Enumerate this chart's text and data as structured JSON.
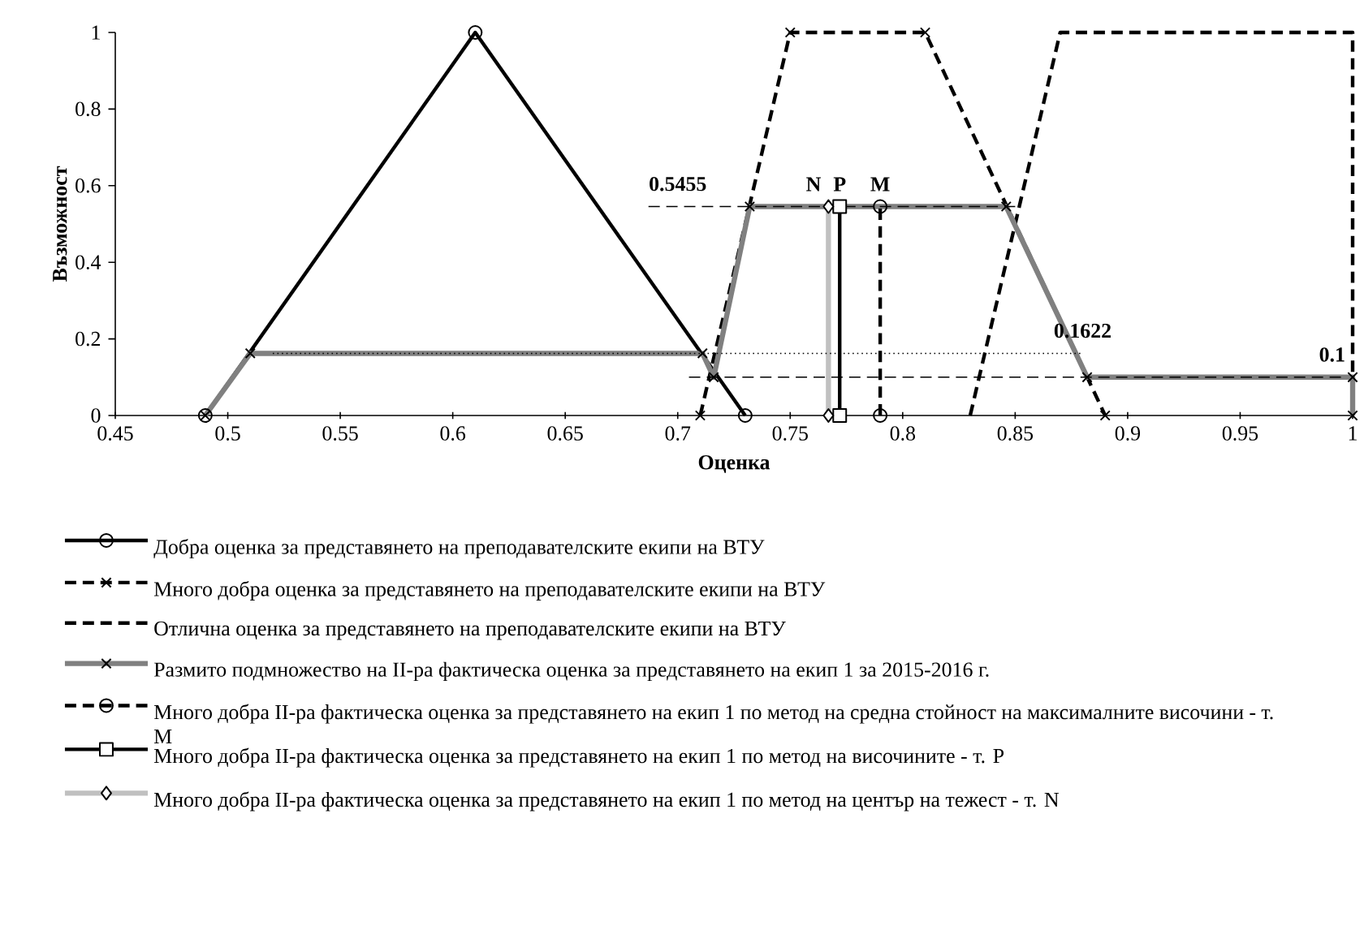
{
  "chart_data": {
    "type": "line",
    "xlabel": "Оценка",
    "ylabel": "Възможност",
    "xlim": [
      0.45,
      1
    ],
    "xticks": [
      0.45,
      0.5,
      0.55,
      0.6,
      0.65,
      0.7,
      0.75,
      0.8,
      0.85,
      0.9,
      0.95,
      1
    ],
    "ylim": [
      0,
      1
    ],
    "yticks": [
      0,
      0.2,
      0.4,
      0.6,
      0.8,
      1
    ],
    "grid": false,
    "legend": "bottom",
    "series": [
      {
        "name": "Добра оценка за представянето на преподавателските екипи на ВТУ",
        "color": "#000000",
        "marker": "circle",
        "line_style": "solid",
        "x": [
          0.49,
          0.61,
          0.73
        ],
        "values": [
          0,
          1,
          0
        ]
      },
      {
        "name": "Много добра оценка за представянето на преподавателските екипи на ВТУ",
        "color": "#000000",
        "marker": "cross",
        "line_style": "dashed",
        "x": [
          0.71,
          0.75,
          0.81,
          0.89
        ],
        "values": [
          0,
          1,
          1,
          0
        ]
      },
      {
        "name": "Отлична оценка за представянето на преподавателските екипи на ВТУ",
        "color": "#000000",
        "marker": "none",
        "line_style": "dashed",
        "x": [
          0.83,
          0.87,
          1,
          1
        ],
        "values": [
          0,
          1,
          1,
          0
        ]
      },
      {
        "name": "Размито подмножество на II-ра фактическа оценка за представянето на екип 1 за 2015-2016 г.",
        "color": "#808080",
        "marker": "cross",
        "line_style": "solid",
        "x": [
          0.49,
          0.51,
          0.711,
          0.716,
          0.732,
          0.846,
          0.882,
          1,
          1
        ],
        "values": [
          0,
          0.1622,
          0.1622,
          0.1,
          0.5455,
          0.5455,
          0.1,
          0.1,
          0
        ]
      },
      {
        "name": "Много добра II-ра фактическа оценка за представянето на екип 1 по метод на средна стойност на максималните височини - т. M",
        "color": "#000000",
        "marker": "circle",
        "line_style": "dashed",
        "x": [
          0.79,
          0.79
        ],
        "values": [
          0,
          0.5455
        ]
      },
      {
        "name": "Много добра II-ра фактическа оценка за представянето на екип 1 по метод на височините - т. P",
        "color": "#000000",
        "marker": "square",
        "line_style": "solid",
        "x": [
          0.772,
          0.772
        ],
        "values": [
          0,
          0.5455
        ]
      },
      {
        "name": "Много добра II-ра фактическа оценка за представянето на екип 1 по метод на център на тежест - т. N",
        "color": "#c0c0c0",
        "marker": "diamond",
        "line_style": "solid",
        "x": [
          0.767,
          0.767
        ],
        "values": [
          0,
          0.5455
        ]
      },
      {
        "color": "#000000",
        "marker": "none",
        "line_style": "dashed",
        "x": [
          0.687,
          0.85
        ],
        "values": [
          0.5455,
          0.5455
        ]
      },
      {
        "color": "#000000",
        "marker": "none",
        "line_style": "dotted",
        "x": [
          0.52,
          0.88
        ],
        "values": [
          0.1622,
          0.1622
        ]
      },
      {
        "color": "#000000",
        "marker": "none",
        "line_style": "dashed",
        "x": [
          0.705,
          0.995
        ],
        "values": [
          0.1,
          0.1
        ]
      }
    ],
    "annotations": [
      {
        "text": "0.5455",
        "x": 0.7,
        "y": 0.5455
      },
      {
        "text": "0.1622",
        "x": 0.88,
        "y": 0.1622
      },
      {
        "text": "0.1",
        "x": 1,
        "y": 0.1
      },
      {
        "text": "N",
        "x": 0.767,
        "y": 0.5455
      },
      {
        "text": "P",
        "x": 0.772,
        "y": 0.5455
      },
      {
        "text": "M",
        "x": 0.79,
        "y": 0.5455
      }
    ]
  }
}
